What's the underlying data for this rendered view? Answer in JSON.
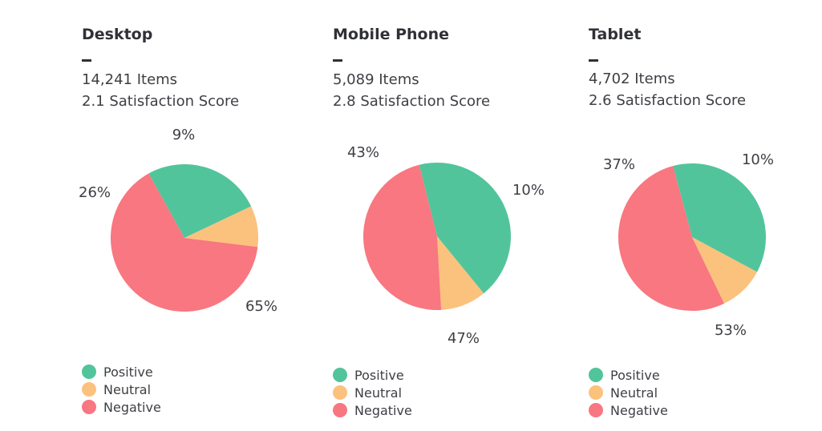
{
  "colors": {
    "positive": "#52c49c",
    "neutral": "#fbc27d",
    "negative": "#f87780"
  },
  "legend": [
    "Positive",
    "Neutral",
    "Negative"
  ],
  "panels": [
    {
      "title": "Desktop",
      "items": "14,241 Items",
      "score": "2.1 Satisfaction Score",
      "labels": [
        "26%",
        "9%",
        "65%"
      ]
    },
    {
      "title": "Mobile Phone",
      "items": "5,089 Items",
      "score": "2.8 Satisfaction Score",
      "labels": [
        "43%",
        "10%",
        "47%"
      ]
    },
    {
      "title": "Tablet",
      "items": "4,702 Items",
      "score": "2.6 Satisfaction Score",
      "labels": [
        "37%",
        "10%",
        "53%"
      ]
    }
  ],
  "chart_data": [
    {
      "type": "pie",
      "title": "Desktop",
      "categories": [
        "Positive",
        "Neutral",
        "Negative"
      ],
      "values": [
        26,
        9,
        65
      ]
    },
    {
      "type": "pie",
      "title": "Mobile Phone",
      "categories": [
        "Positive",
        "Neutral",
        "Negative"
      ],
      "values": [
        43,
        10,
        47
      ]
    },
    {
      "type": "pie",
      "title": "Tablet",
      "categories": [
        "Positive",
        "Neutral",
        "Negative"
      ],
      "values": [
        37,
        10,
        53
      ]
    }
  ]
}
